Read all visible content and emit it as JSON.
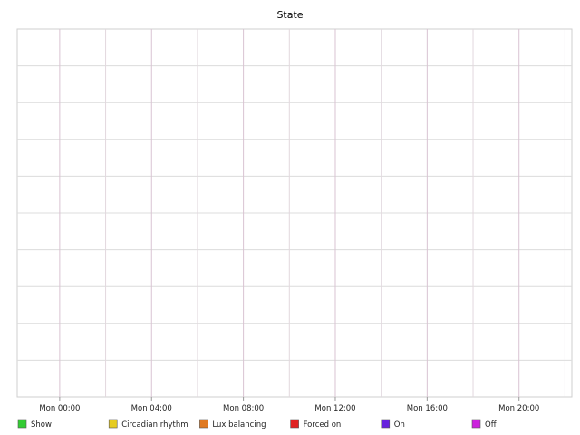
{
  "chart_data": {
    "type": "area",
    "title": "State",
    "xlabel": "",
    "ylabel": "",
    "x_tick_labels": [
      "Mon 00:00",
      "Mon 04:00",
      "Mon 08:00",
      "Mon 12:00",
      "Mon 16:00",
      "Mon 20:00"
    ],
    "x_range_hours": [
      -1.85,
      22.3
    ],
    "y_tick_count": 10,
    "grid": true,
    "legend_position": "bottom",
    "series": [
      {
        "name": "Show",
        "color": "#33cc33",
        "values": []
      },
      {
        "name": "Circadian rhythm",
        "color": "#e6cc22",
        "values": []
      },
      {
        "name": "Lux balancing",
        "color": "#e07a22",
        "values": []
      },
      {
        "name": "Forced on",
        "color": "#e02222",
        "values": []
      },
      {
        "name": "On",
        "color": "#6622dd",
        "values": []
      },
      {
        "name": "Off",
        "color": "#cc22dd",
        "values": []
      }
    ]
  }
}
